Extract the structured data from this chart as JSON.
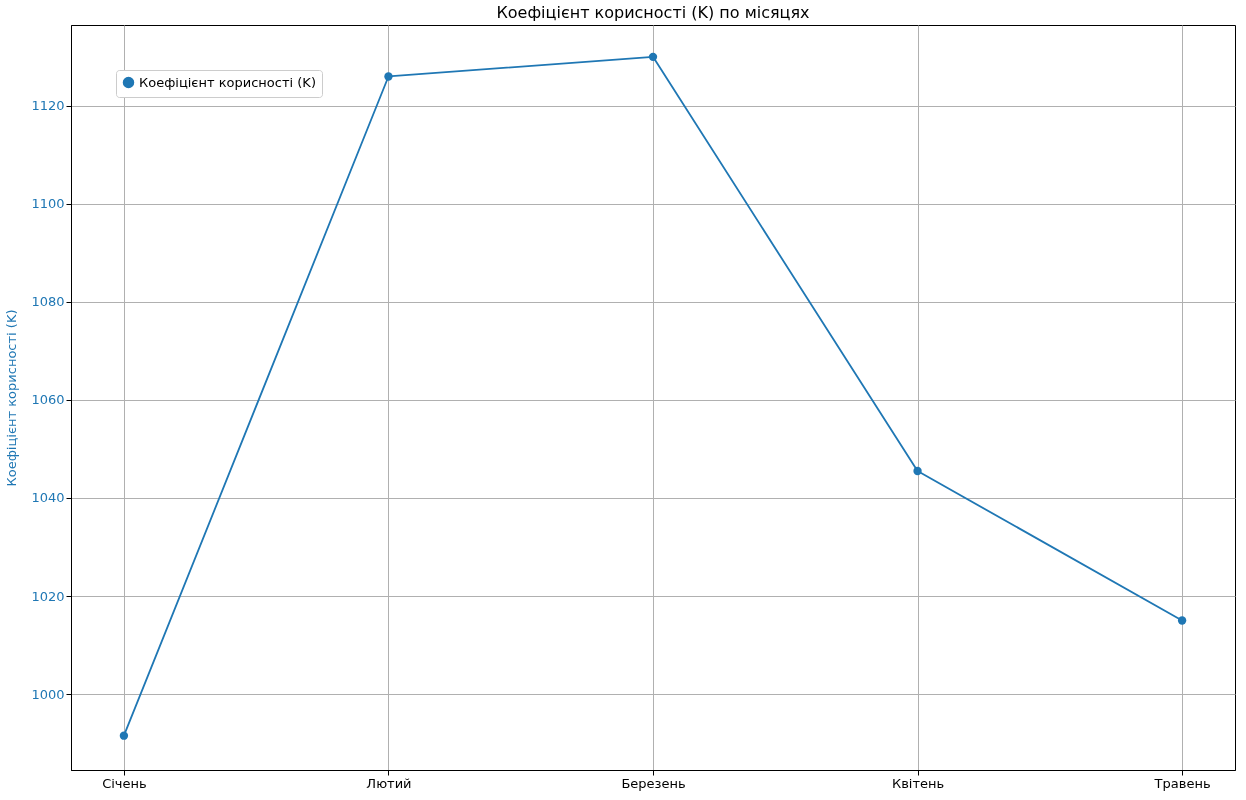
{
  "chart_data": {
    "type": "line",
    "title": "Коефіцієнт корисності (K) по місяцях",
    "ylabel": "Коефіцієнт корисності (K)",
    "categories": [
      "Січень",
      "Лютий",
      "Березень",
      "Квітень",
      "Травень"
    ],
    "series": [
      {
        "name": "Коефіцієнт корисності (K)",
        "color": "#1f77b4",
        "values": [
          991.5,
          1126,
          1130,
          1045.5,
          1015
        ]
      }
    ],
    "ylim": [
      984.5,
      1136.5
    ],
    "yticks": [
      1000,
      1020,
      1040,
      1060,
      1080,
      1100,
      1120
    ],
    "grid": true,
    "legend": "top left",
    "marker": "circle",
    "line_style": "solid"
  }
}
